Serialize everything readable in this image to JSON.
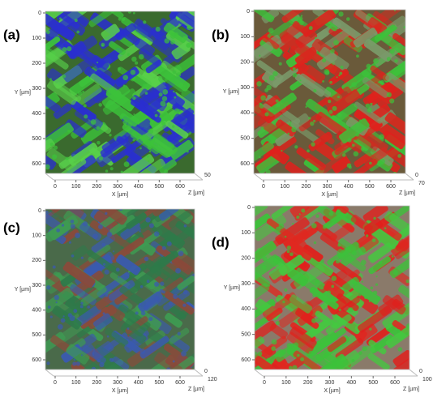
{
  "panels": [
    {
      "label": "(a)",
      "y_ticks": [
        "0",
        "100",
        "200",
        "300",
        "400",
        "500",
        "600"
      ],
      "y_label": "Y [µm]",
      "x_ticks": [
        "0",
        "100",
        "200",
        "300",
        "400",
        "500",
        "600"
      ],
      "x_label": "X [µm]",
      "z_ticks": [
        "50"
      ],
      "z_label": "Z [µm]"
    },
    {
      "label": "(b)",
      "y_ticks": [
        "0",
        "100",
        "200",
        "300",
        "400",
        "500",
        "600"
      ],
      "y_label": "Y [µm]",
      "x_ticks": [
        "0",
        "100",
        "200",
        "300",
        "400",
        "500",
        "600"
      ],
      "x_label": "X [µm]",
      "z_ticks": [
        "0",
        "70"
      ],
      "z_label": "Z [µm]"
    },
    {
      "label": "(c)",
      "y_ticks": [
        "0",
        "100",
        "200",
        "300",
        "400",
        "500",
        "600"
      ],
      "y_label": "Y [µm]",
      "x_ticks": [
        "0",
        "100",
        "200",
        "300",
        "400",
        "500",
        "600"
      ],
      "x_label": "X [µm]",
      "z_ticks": [
        "0",
        "120"
      ],
      "z_label": "Z [µm]"
    },
    {
      "label": "(d)",
      "y_ticks": [
        "0",
        "100",
        "200",
        "300",
        "400",
        "500",
        "600"
      ],
      "y_label": "Y [µm]",
      "x_ticks": [
        "0",
        "100",
        "200",
        "300",
        "400",
        "500",
        "600"
      ],
      "x_label": "X [µm]",
      "z_ticks": [
        "0",
        "100"
      ],
      "z_label": "Z [µm]"
    }
  ]
}
